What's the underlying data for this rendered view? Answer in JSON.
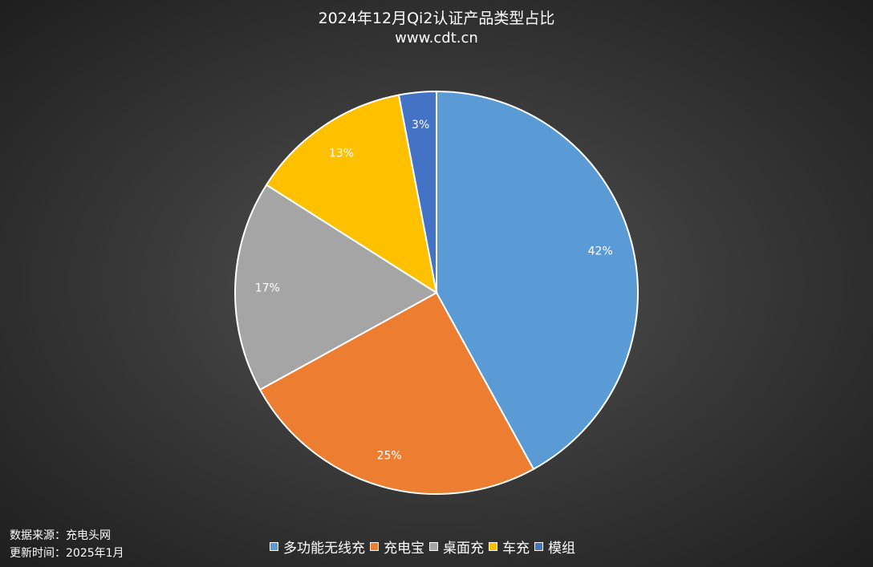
{
  "chart_data": {
    "type": "pie",
    "title": "2024年12月Qi2认证产品类型占比",
    "subtitle": "www.cdt.cn",
    "categories": [
      "多功能无线充",
      "充电宝",
      "桌面充",
      "车充",
      "模组"
    ],
    "values": [
      42,
      25,
      17,
      13,
      3
    ],
    "labels": [
      "42%",
      "25%",
      "17%",
      "13%",
      "3%"
    ],
    "colors": [
      "#5b9bd5",
      "#ed7d31",
      "#a5a5a5",
      "#ffc000",
      "#4472c4"
    ],
    "legend_position": "bottom"
  },
  "footer": {
    "source": "数据来源：充电头网",
    "updated": "更新时间：2025年1月"
  }
}
